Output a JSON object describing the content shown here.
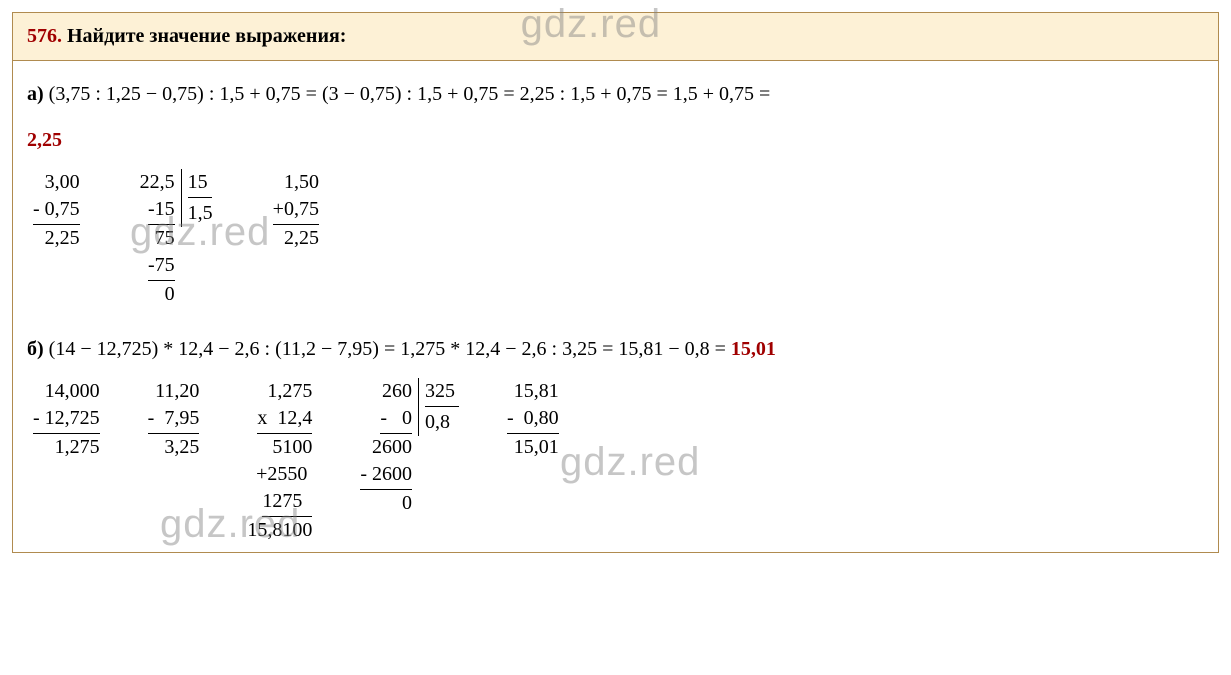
{
  "colors": {
    "border": "#b08b4f",
    "header_bg": "#fdf1d6",
    "accent": "#a00000",
    "text": "#000000",
    "watermark": "rgba(128,128,128,0.45)",
    "page_bg": "#ffffff"
  },
  "watermark": "gdz.red",
  "problem": {
    "number": "576.",
    "title": "Найдите значение выражения:"
  },
  "parts": {
    "a": {
      "label": "а)",
      "expression": "(3,75 : 1,25 − 0,75) : 1,5 + 0,75 = (3 − 0,75) : 1,5 + 0,75 = 2,25 : 1,5 + 0,75 = 1,5 + 0,75 =",
      "answer": "2,25",
      "calc": {
        "sub1": {
          "top": "3,00",
          "minus": "- 0,75",
          "res": "2,25"
        },
        "div1": {
          "left": [
            "22,5",
            "-15",
            "75",
            "-75",
            "0"
          ],
          "divisor": "15",
          "quotient": "1,5"
        },
        "add1": {
          "top": "1,50",
          "plus": "+0,75",
          "res": "2,25"
        }
      }
    },
    "b": {
      "label": "б)",
      "expression": "(14 − 12,725) * 12,4 − 2,6 : (11,2 − 7,95) = 1,275 * 12,4 − 2,6 : 3,25 = 15,81 − 0,8 = ",
      "answer": "15,01",
      "calc": {
        "sub1": {
          "top": "14,000",
          "minus": "- 12,725",
          "res": "1,275"
        },
        "sub2": {
          "top": "11,20",
          "minus": "-  7,95",
          "res": "3,25"
        },
        "mul1": {
          "top": "1,275",
          "by": "x  12,4",
          "p1": "5100",
          "p2": "+2550 ",
          "p3": "1275  ",
          "res": "15,8100"
        },
        "div1": {
          "left": [
            "260",
            "-   0",
            "2600",
            "- 2600",
            "0"
          ],
          "divisor": "325",
          "quotient": "0,8"
        },
        "sub3": {
          "top": "15,81",
          "minus": "-  0,80",
          "res": "15,01"
        }
      }
    }
  }
}
